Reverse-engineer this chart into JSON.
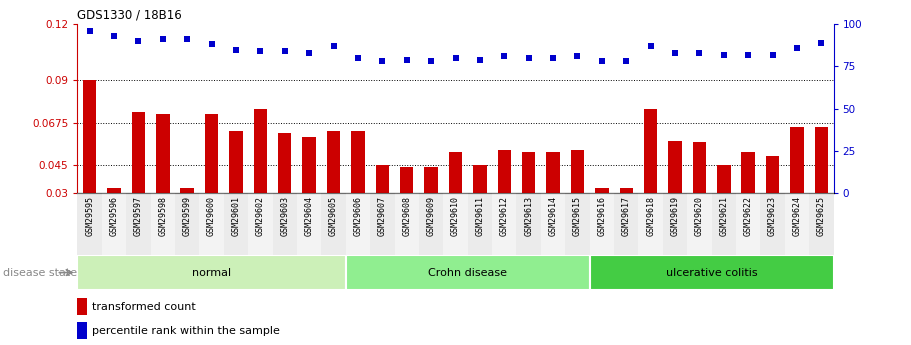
{
  "title": "GDS1330 / 18B16",
  "categories": [
    "GSM29595",
    "GSM29596",
    "GSM29597",
    "GSM29598",
    "GSM29599",
    "GSM29600",
    "GSM29601",
    "GSM29602",
    "GSM29603",
    "GSM29604",
    "GSM29605",
    "GSM29606",
    "GSM29607",
    "GSM29608",
    "GSM29609",
    "GSM29610",
    "GSM29611",
    "GSM29612",
    "GSM29613",
    "GSM29614",
    "GSM29615",
    "GSM29616",
    "GSM29617",
    "GSM29618",
    "GSM29619",
    "GSM29620",
    "GSM29621",
    "GSM29622",
    "GSM29623",
    "GSM29624",
    "GSM29625"
  ],
  "bar_values": [
    0.09,
    0.033,
    0.073,
    0.072,
    0.033,
    0.072,
    0.063,
    0.075,
    0.062,
    0.06,
    0.063,
    0.063,
    0.045,
    0.044,
    0.044,
    0.052,
    0.045,
    0.053,
    0.052,
    0.052,
    0.053,
    0.033,
    0.033,
    0.075,
    0.058,
    0.057,
    0.045,
    0.052,
    0.05,
    0.065,
    0.065
  ],
  "scatter_values": [
    96,
    93,
    90,
    91,
    91,
    88,
    85,
    84,
    84,
    83,
    87,
    80,
    78,
    79,
    78,
    80,
    79,
    81,
    80,
    80,
    81,
    78,
    78,
    87,
    83,
    83,
    82,
    82,
    82,
    86,
    89
  ],
  "groups": [
    {
      "label": "normal",
      "start": 0,
      "end": 10,
      "color": "#c8f0b0"
    },
    {
      "label": "Crohn disease",
      "start": 11,
      "end": 20,
      "color": "#90ee90"
    },
    {
      "label": "ulcerative colitis",
      "start": 21,
      "end": 30,
      "color": "#33cc33"
    }
  ],
  "bar_color": "#cc0000",
  "scatter_color": "#0000cc",
  "ylim_left": [
    0.03,
    0.12
  ],
  "ylim_right": [
    0,
    100
  ],
  "yticks_left": [
    0.03,
    0.045,
    0.0675,
    0.09,
    0.12
  ],
  "yticks_right": [
    0,
    25,
    50,
    75,
    100
  ],
  "grid_values": [
    0.09,
    0.0675,
    0.045
  ],
  "disease_state_label": "disease state",
  "legend_bar_label": "transformed count",
  "legend_scatter_label": "percentile rank within the sample",
  "background_color": "#ffffff",
  "group_colors": [
    "#ccf0b8",
    "#90ee90",
    "#44cc44"
  ]
}
